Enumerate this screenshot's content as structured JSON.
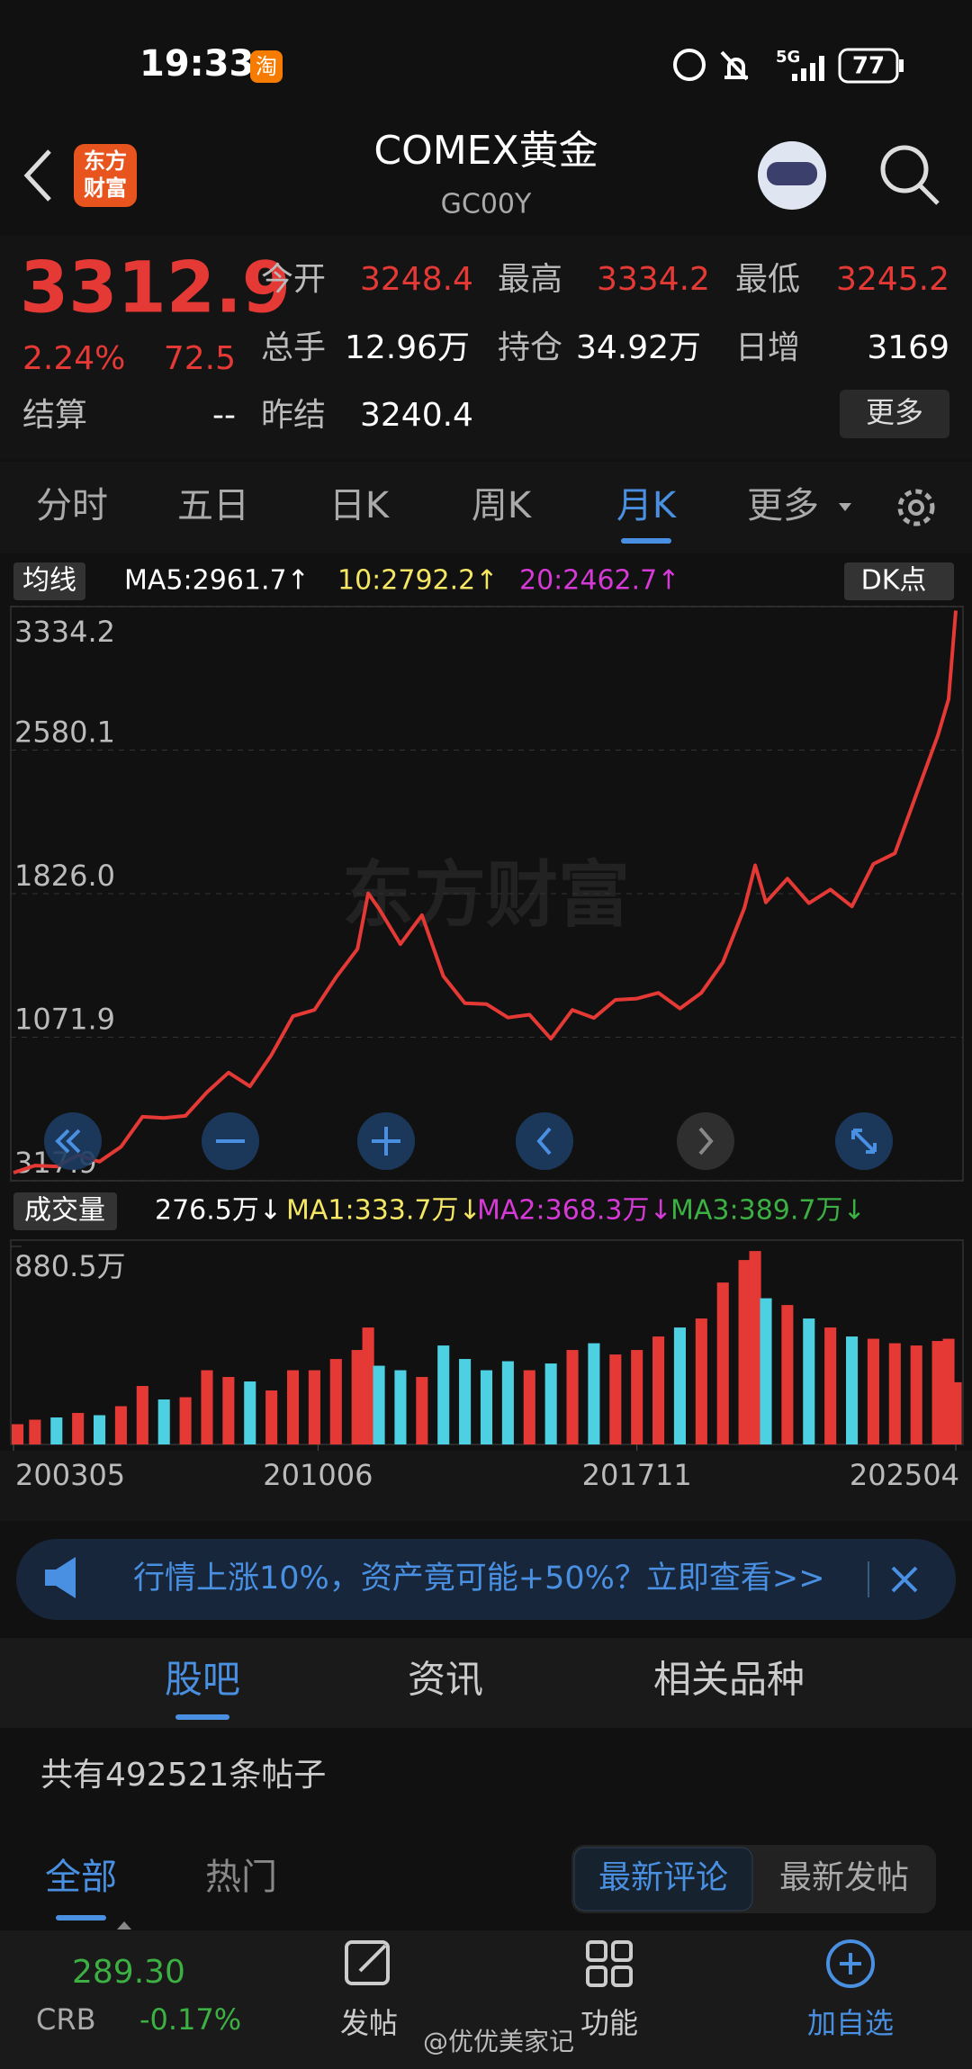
{
  "status_bar": {
    "time": "19:33",
    "app_badge": "淘",
    "network": "5G",
    "battery": "77"
  },
  "header": {
    "logo": [
      "东方",
      "财富"
    ],
    "title": "COMEX黄金",
    "code": "GC00Y"
  },
  "quote": {
    "price": "3312.9",
    "change_pct": "2.24%",
    "change": "72.5",
    "fields": [
      {
        "label": "今开",
        "value": "3248.4"
      },
      {
        "label": "最高",
        "value": "3334.2"
      },
      {
        "label": "最低",
        "value": "3245.2"
      },
      {
        "label": "总手",
        "value": "12.96万"
      },
      {
        "label": "持仓",
        "value": "34.92万"
      },
      {
        "label": "日增",
        "value": "3169"
      },
      {
        "label": "结算",
        "value": "--"
      },
      {
        "label": "昨结",
        "value": "3240.4"
      }
    ],
    "more_button": "更多"
  },
  "period_tabs": [
    "分时",
    "五日",
    "日K",
    "周K",
    "月K",
    "更多"
  ],
  "price_legend": {
    "label": "均线",
    "ma5": "MA5:2961.7↑",
    "ma10": "10:2792.2↑",
    "ma20": "20:2462.7↑",
    "dk": "DK点"
  },
  "chart_watermark": "东方财富",
  "volume_legend": {
    "label": "成交量",
    "volume": "276.5万↓",
    "ma1": "MA1:333.7万↓",
    "ma2": "MA2:368.3万↓",
    "ma3": "MA3:389.7万↓"
  },
  "chart_data": [
    {
      "type": "line",
      "color": "#e53935",
      "x": [
        "200305",
        "200311",
        "200405",
        "200411",
        "200505",
        "200511",
        "200605",
        "200611",
        "200705",
        "200711",
        "200805",
        "200811",
        "200905",
        "200911",
        "201005",
        "201011",
        "201105",
        "201108",
        "201111",
        "201205",
        "201211",
        "201305",
        "201311",
        "201405",
        "201411",
        "201505",
        "201511",
        "201605",
        "201611",
        "201705",
        "201711",
        "201805",
        "201811",
        "201905",
        "201911",
        "202005",
        "202008",
        "202011",
        "202105",
        "202111",
        "202205",
        "202211",
        "202305",
        "202311",
        "202405",
        "202411",
        "202502",
        "202504"
      ],
      "values": [
        360,
        398,
        393,
        452,
        418,
        496,
        654,
        648,
        659,
        783,
        886,
        814,
        979,
        1182,
        1215,
        1386,
        1536,
        1828,
        1747,
        1561,
        1713,
        1392,
        1250,
        1246,
        1175,
        1190,
        1064,
        1215,
        1173,
        1268,
        1275,
        1305,
        1223,
        1305,
        1465,
        1751,
        1975,
        1780,
        1905,
        1776,
        1848,
        1759,
        1982,
        2038,
        2348,
        2657,
        2848,
        3312.9
      ],
      "xlim": [
        "200305",
        "202504"
      ],
      "ylim": [
        317.9,
        3334.2
      ],
      "yticks": [
        3334.2,
        2580.1,
        {
          "value": 1826,
          "label": "1826.0"
        },
        1071.9,
        317.9
      ],
      "grid": true
    },
    {
      "type": "bar",
      "up_color": "#e53935",
      "down_color": "#4dd0e1",
      "x": [
        "200305",
        "200311",
        "200405",
        "200411",
        "200505",
        "200511",
        "200605",
        "200611",
        "200705",
        "200711",
        "200805",
        "200811",
        "200905",
        "200911",
        "201005",
        "201011",
        "201105",
        "201108",
        "201111",
        "201205",
        "201211",
        "201305",
        "201311",
        "201405",
        "201411",
        "201505",
        "201511",
        "201605",
        "201611",
        "201705",
        "201711",
        "201805",
        "201811",
        "201905",
        "201911",
        "202005",
        "202008",
        "202011",
        "202105",
        "202111",
        "202205",
        "202211",
        "202305",
        "202311",
        "202405",
        "202411",
        "202502",
        "202504"
      ],
      "values": [
        90,
        110,
        120,
        140,
        130,
        170,
        260,
        200,
        210,
        330,
        300,
        280,
        240,
        330,
        330,
        380,
        420,
        520,
        350,
        330,
        300,
        440,
        380,
        330,
        370,
        330,
        360,
        420,
        450,
        400,
        420,
        480,
        520,
        560,
        720,
        820,
        860,
        650,
        620,
        560,
        520,
        480,
        470,
        450,
        440,
        460,
        470,
        276.5
      ],
      "xlim": [
        "200305",
        "202504"
      ],
      "ylim": [
        0,
        880.5
      ],
      "yticks": [
        {
          "value": 880.5,
          "label": "880.5万"
        }
      ],
      "xticks": [
        "200305",
        "201006",
        "201711",
        "202504"
      ]
    }
  ],
  "banner": "行情上涨10%，资产竟可能+50%？立即查看>>",
  "section_tabs": [
    "股吧",
    "资讯",
    "相关品种"
  ],
  "post_count": "共有492521条帖子",
  "filters": {
    "left": [
      "全部",
      "热门"
    ],
    "right": [
      "最新评论",
      "最新发帖"
    ]
  },
  "bottom_nav": {
    "index_value": "289.30",
    "index_name": "CRB",
    "index_change": "-0.17%",
    "items": [
      "发帖",
      "功能",
      "加自选"
    ]
  },
  "watermark": "@优优美家记"
}
